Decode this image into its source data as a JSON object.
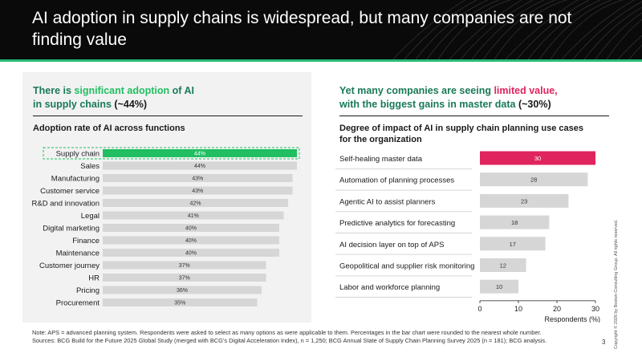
{
  "header": {
    "title": "AI adoption in supply chains is widespread, but many companies are not finding value"
  },
  "left": {
    "heading_pre": "There is ",
    "heading_accent": "significant adoption",
    "heading_mid": " of AI",
    "heading_line2": "in supply chains ",
    "heading_value": "(~44%)",
    "chart_title": "Adoption rate of AI across functions"
  },
  "right": {
    "heading_line1_pre": "Yet many companies are seeing ",
    "heading_accent": "limited value,",
    "heading_line2": "with the biggest gains in master data ",
    "heading_value": "(~30%)",
    "chart_title": "Degree of impact of AI in supply chain planning use cases for the organization"
  },
  "colors": {
    "header_bg": "#0a0a0a",
    "brand_green": "#29ba74",
    "highlight_green": "#21bf61",
    "highlight_red": "#e0245e",
    "bar_gray": "#d6d6d6"
  },
  "chart_data": [
    {
      "type": "bar",
      "orientation": "horizontal",
      "title": "Adoption rate of AI across functions",
      "categories": [
        "Supply chain",
        "Sales",
        "Manufacturing",
        "Customer service",
        "R&D and innovation",
        "Legal",
        "Digital marketing",
        "Finance",
        "Maintenance",
        "Customer journey",
        "HR",
        "Pricing",
        "Procurement"
      ],
      "values": [
        44,
        44,
        43,
        43,
        42,
        41,
        40,
        40,
        40,
        37,
        37,
        36,
        35
      ],
      "labels": [
        "44%",
        "44%",
        "43%",
        "43%",
        "42%",
        "41%",
        "40%",
        "40%",
        "40%",
        "37%",
        "37%",
        "36%",
        "35%"
      ],
      "highlight": "Supply chain",
      "xlim": [
        0,
        50
      ]
    },
    {
      "type": "bar",
      "orientation": "horizontal",
      "title": "Degree of impact of AI in supply chain planning use cases for the organization",
      "categories": [
        "Self-healing master data",
        "Automation of planning processes",
        "Agentic AI to assist planners",
        "Predictive analytics for forecasting",
        "AI decision layer on top of APS",
        "Geopolitical and supplier risk monitoring",
        "Labor and workforce planning"
      ],
      "values": [
        30,
        28,
        23,
        18,
        17,
        12,
        10
      ],
      "highlight": "Self-healing master data",
      "xlabel": "Respondents (%)",
      "xlim": [
        0,
        30
      ],
      "xticks": [
        0,
        10,
        20,
        30
      ]
    }
  ],
  "footer": {
    "note": "Note: APS = advanced planning system. Respondents were asked to select as many options as were applicable to them. Percentages in the bar chart were rounded to the nearest whole number.",
    "sources": "Sources: BCG Build for the Future 2025 Global Study (merged with BCG’s Digital Acceleration Index), n = 1,250; BCG Annual State of Supply Chain Planning Survey 2025 (n = 181); BCG analysis.",
    "page_number": "3",
    "copyright": "Copyright © 2026 by Boston Consulting Group. All rights reserved."
  }
}
